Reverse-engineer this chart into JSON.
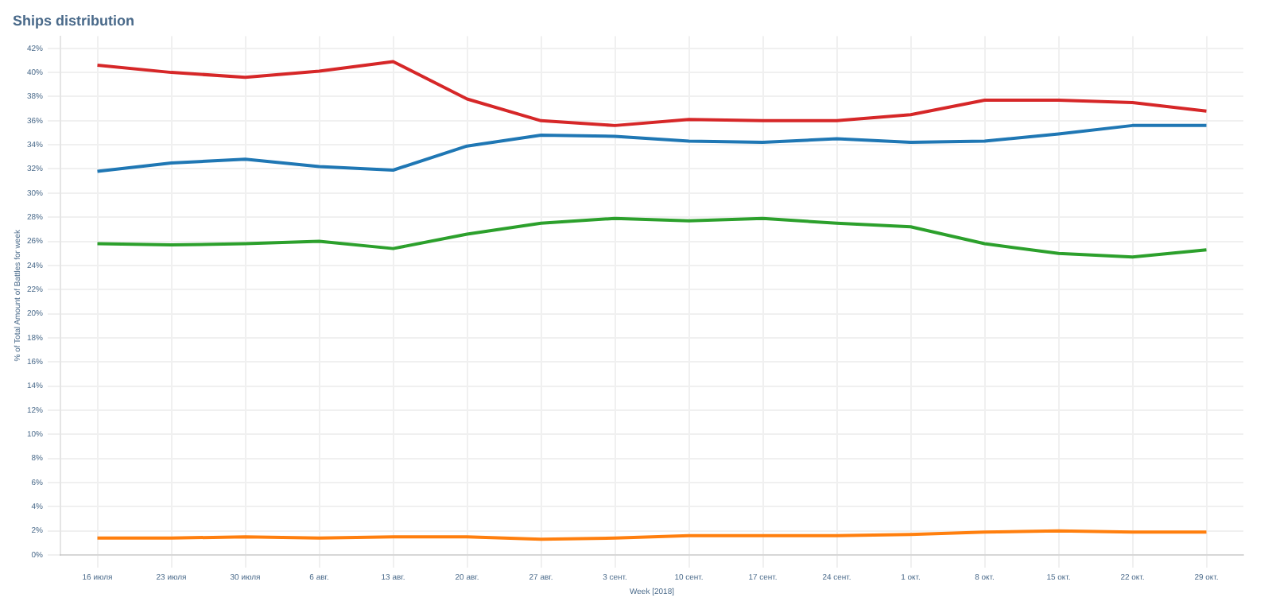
{
  "chart_data": {
    "type": "line",
    "title": "Ships distribution",
    "xlabel": "Week [2018]",
    "ylabel": "% of Total Amount of Battles for week",
    "categories": [
      "16 июля",
      "23 июля",
      "30 июля",
      "6 авг.",
      "13 авг.",
      "20 авг.",
      "27 авг.",
      "3 сент.",
      "10 сент.",
      "17 сент.",
      "24 сент.",
      "1 окт.",
      "8 окт.",
      "15 окт.",
      "22 окт.",
      "29 окт."
    ],
    "series": [
      {
        "color": "#d62728",
        "values": [
          40.6,
          40.0,
          39.6,
          40.1,
          40.9,
          37.8,
          36.0,
          35.6,
          36.1,
          36.0,
          36.0,
          36.5,
          37.7,
          37.7,
          37.5,
          36.8
        ]
      },
      {
        "color": "#1f77b4",
        "values": [
          31.8,
          32.5,
          32.8,
          32.2,
          31.9,
          33.9,
          34.8,
          34.7,
          34.3,
          34.2,
          34.5,
          34.2,
          34.3,
          34.9,
          35.6,
          35.6
        ]
      },
      {
        "color": "#2ca02c",
        "values": [
          25.8,
          25.7,
          25.8,
          26.0,
          25.4,
          26.6,
          27.5,
          27.9,
          27.7,
          27.9,
          27.5,
          27.2,
          25.8,
          25.0,
          24.7,
          25.3
        ]
      },
      {
        "color": "#ff7f0e",
        "values": [
          1.4,
          1.4,
          1.5,
          1.4,
          1.5,
          1.5,
          1.3,
          1.4,
          1.6,
          1.6,
          1.6,
          1.7,
          1.9,
          2.0,
          1.9,
          1.9
        ]
      }
    ],
    "ylim": [
      0,
      43
    ],
    "yticks": [
      {
        "value": 0,
        "label": "0%"
      },
      {
        "value": 2,
        "label": "2%"
      },
      {
        "value": 4,
        "label": "4%"
      },
      {
        "value": 6,
        "label": "6%"
      },
      {
        "value": 8,
        "label": "8%"
      },
      {
        "value": 10,
        "label": "10%"
      },
      {
        "value": 12,
        "label": "12%"
      },
      {
        "value": 14,
        "label": "14%"
      },
      {
        "value": 16,
        "label": "16%"
      },
      {
        "value": 18,
        "label": "18%"
      },
      {
        "value": 20,
        "label": "20%"
      },
      {
        "value": 22,
        "label": "22%"
      },
      {
        "value": 24,
        "label": "24%"
      },
      {
        "value": 26,
        "label": "26%"
      },
      {
        "value": 28,
        "label": "28%"
      },
      {
        "value": 30,
        "label": "30%"
      },
      {
        "value": 32,
        "label": "32%"
      },
      {
        "value": 34,
        "label": "34%"
      },
      {
        "value": 36,
        "label": "36%"
      },
      {
        "value": 38,
        "label": "38%"
      },
      {
        "value": 40,
        "label": "40%"
      },
      {
        "value": 42,
        "label": "42%"
      }
    ],
    "grid": true,
    "legend": false,
    "marker": "none",
    "line_style": "solid"
  }
}
